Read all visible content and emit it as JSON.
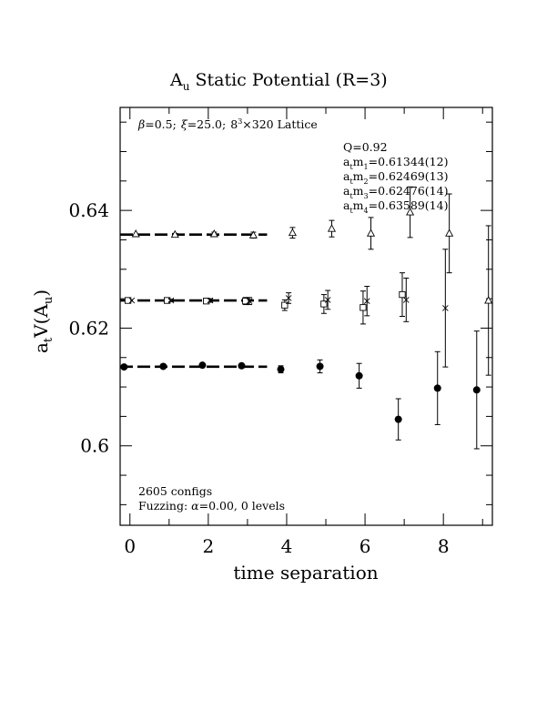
{
  "chart_data": {
    "type": "scatter",
    "title": "Static Potential (R=3)",
    "title_prefix": "A",
    "title_prefix_sub": "u",
    "xlabel": "time separation",
    "ylabel": "a",
    "ylabel_sub": "t",
    "ylabel_rest": "V(A",
    "ylabel_sub2": "u",
    "ylabel_end": ")",
    "xlim": [
      -0.25,
      9.25
    ],
    "ylim": [
      0.5865,
      0.6575
    ],
    "x_ticks": [
      0,
      2,
      4,
      6,
      8
    ],
    "x_tick_labels": [
      "0",
      "2",
      "4",
      "6",
      "8"
    ],
    "y_ticks": [
      0.6,
      0.62,
      0.64
    ],
    "y_tick_labels": [
      "0.6",
      "0.62",
      "0.64"
    ],
    "lattice_info": {
      "beta_sym": "β",
      "beta_val": "=0.5;",
      "xi_sym": "ξ",
      "xi_val": "=25.0;",
      "lattice_main": "8",
      "lattice_sup": "3",
      "lattice_rest": "×320 Lattice"
    },
    "fit_info": {
      "Q": "Q=0.92",
      "lines": [
        {
          "pre": "a",
          "sub1": "t",
          "mid": "m",
          "sub2": "1",
          "val": "=0.61344(12)"
        },
        {
          "pre": "a",
          "sub1": "t",
          "mid": "m",
          "sub2": "2",
          "val": "=0.62469(13)"
        },
        {
          "pre": "a",
          "sub1": "t",
          "mid": "m",
          "sub2": "3",
          "val": "=0.62476(14)"
        },
        {
          "pre": "a",
          "sub1": "t",
          "mid": "m",
          "sub2": "4",
          "val": "=0.63589(14)"
        }
      ]
    },
    "configs": "2605 configs",
    "fuzzing_pre": "Fuzzing: ",
    "fuzzing_sym": "α",
    "fuzzing_post": "=0.00, 0 levels",
    "fit_lines": [
      {
        "series": "m1",
        "y": 0.61344,
        "x_range": [
          -0.25,
          3.5
        ]
      },
      {
        "series": "m2",
        "y": 0.62469,
        "x_range": [
          -0.25,
          3.5
        ]
      },
      {
        "series": "m4",
        "y": 0.63589,
        "x_range": [
          -0.25,
          3.5
        ]
      }
    ],
    "series": [
      {
        "key": "m1",
        "marker": "filled-circle",
        "offset": -0.15,
        "points": [
          {
            "x": 0,
            "y": 0.6134,
            "err": 0.0001
          },
          {
            "x": 1,
            "y": 0.6135,
            "err": 0.0001
          },
          {
            "x": 2,
            "y": 0.6137,
            "err": 0.0002
          },
          {
            "x": 3,
            "y": 0.6136,
            "err": 0.0003
          },
          {
            "x": 4,
            "y": 0.613,
            "err": 0.0006
          },
          {
            "x": 5,
            "y": 0.6135,
            "err": 0.0011
          },
          {
            "x": 6,
            "y": 0.6119,
            "err": 0.0021
          },
          {
            "x": 7,
            "y": 0.6045,
            "err": 0.0035
          },
          {
            "x": 8,
            "y": 0.6098,
            "err": 0.0062
          },
          {
            "x": 9,
            "y": 0.6095,
            "err": 0.01
          }
        ]
      },
      {
        "key": "m2",
        "marker": "open-square",
        "offset": -0.05,
        "points": [
          {
            "x": 0,
            "y": 0.6247,
            "err": 0.0001
          },
          {
            "x": 1,
            "y": 0.6247,
            "err": 0.0002
          },
          {
            "x": 2,
            "y": 0.6246,
            "err": 0.0003
          },
          {
            "x": 3,
            "y": 0.6246,
            "err": 0.0006
          },
          {
            "x": 4,
            "y": 0.6239,
            "err": 0.0009
          },
          {
            "x": 5,
            "y": 0.6241,
            "err": 0.0016
          },
          {
            "x": 6,
            "y": 0.6235,
            "err": 0.0028
          },
          {
            "x": 7,
            "y": 0.6257,
            "err": 0.0037
          }
        ]
      },
      {
        "key": "m3",
        "marker": "cross",
        "offset": 0.05,
        "points": [
          {
            "x": 0,
            "y": 0.6247,
            "err": 0.0001
          },
          {
            "x": 1,
            "y": 0.6247,
            "err": 0.0002
          },
          {
            "x": 2,
            "y": 0.6247,
            "err": 0.0003
          },
          {
            "x": 3,
            "y": 0.6246,
            "err": 0.0006
          },
          {
            "x": 4,
            "y": 0.6251,
            "err": 0.0009
          },
          {
            "x": 5,
            "y": 0.6248,
            "err": 0.0016
          },
          {
            "x": 6,
            "y": 0.6246,
            "err": 0.0025
          },
          {
            "x": 7,
            "y": 0.6248,
            "err": 0.0037
          },
          {
            "x": 8,
            "y": 0.6234,
            "err": 0.01
          }
        ]
      },
      {
        "key": "m4",
        "marker": "open-triangle",
        "offset": 0.15,
        "points": [
          {
            "x": 0,
            "y": 0.636,
            "err": 0.0001
          },
          {
            "x": 1,
            "y": 0.6359,
            "err": 0.0002
          },
          {
            "x": 2,
            "y": 0.636,
            "err": 0.0003
          },
          {
            "x": 3,
            "y": 0.6358,
            "err": 0.0005
          },
          {
            "x": 4,
            "y": 0.6362,
            "err": 0.0009
          },
          {
            "x": 5,
            "y": 0.6369,
            "err": 0.0014
          },
          {
            "x": 6,
            "y": 0.6361,
            "err": 0.0027
          },
          {
            "x": 7,
            "y": 0.6397,
            "err": 0.0043
          },
          {
            "x": 8,
            "y": 0.6361,
            "err": 0.0067
          },
          {
            "x": 9,
            "y": 0.6247,
            "err": 0.0127
          }
        ]
      }
    ]
  }
}
